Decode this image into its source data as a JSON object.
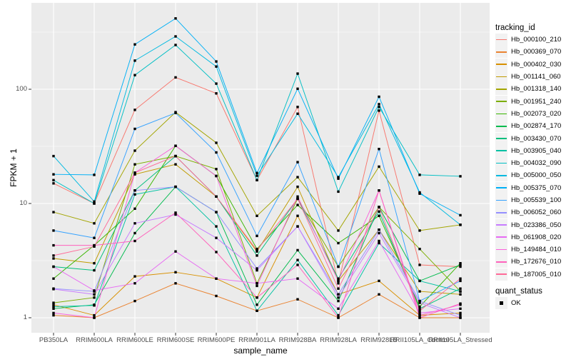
{
  "chart_data": {
    "type": "line",
    "title": "",
    "xlabel": "sample_name",
    "ylabel": "FPKM + 1",
    "yscale": "log10",
    "ylim": [
      0.75,
      530
    ],
    "yticks": [
      1,
      10,
      100
    ],
    "ytick_labels": [
      "1",
      "10",
      "100"
    ],
    "grid": "on",
    "marker": "black-square",
    "legend": {
      "title": "tracking_id",
      "position": "right"
    },
    "quant_status": {
      "title": "quant_status",
      "items": [
        {
          "label": "OK",
          "marker": "black-square"
        }
      ]
    },
    "categories": [
      "PB350LA",
      "RRIM600LA",
      "RRIM600LE",
      "RRIM600SE",
      "RRIM600PE",
      "RRIM901LA",
      "RRIM928BA",
      "RRIM928LA",
      "RRIM928LB",
      "RRII105LA_Control",
      "RRII105LA_Stressed"
    ],
    "series": [
      {
        "name": "Hb_000100_210",
        "color": "#F8766D",
        "values": [
          15,
          10,
          66,
          127,
          92,
          16,
          70,
          2.0,
          65,
          2.9,
          2.8
        ]
      },
      {
        "name": "Hb_000369_070",
        "color": "#EA8331",
        "values": [
          1.05,
          1.0,
          1.4,
          2.0,
          1.55,
          1.15,
          1.45,
          1.0,
          1.6,
          1.0,
          1.0
        ]
      },
      {
        "name": "Hb_000402_030",
        "color": "#D89000",
        "values": [
          1.3,
          1.05,
          2.3,
          2.5,
          2.2,
          1.5,
          7.8,
          1.6,
          2.1,
          1.05,
          1.1
        ]
      },
      {
        "name": "Hb_001141_060",
        "color": "#C09B00",
        "values": [
          3.3,
          3.0,
          18,
          22,
          11.5,
          3.8,
          14,
          2.1,
          5.9,
          1.7,
          1.6
        ]
      },
      {
        "name": "Hb_001318_140",
        "color": "#A3A500",
        "values": [
          8.4,
          6.7,
          29,
          63,
          34,
          7.8,
          17,
          5.8,
          21,
          5.8,
          6.5
        ]
      },
      {
        "name": "Hb_001951_240",
        "color": "#7CAE00",
        "values": [
          1.35,
          1.5,
          22,
          26,
          20,
          2.0,
          11,
          2.8,
          9.3,
          4.0,
          1.7
        ]
      },
      {
        "name": "Hb_002073_020",
        "color": "#39B600",
        "values": [
          2.2,
          4.3,
          9.0,
          32,
          17.4,
          4.0,
          9.7,
          4.5,
          7.8,
          1.25,
          3.0
        ]
      },
      {
        "name": "Hb_002874_170",
        "color": "#00BB4E",
        "values": [
          1.2,
          1.3,
          5.5,
          14,
          8.4,
          1.3,
          3.9,
          1.4,
          9.3,
          2.1,
          2.9
        ]
      },
      {
        "name": "Hb_003430_070",
        "color": "#00BF7D",
        "values": [
          2.8,
          2.6,
          13,
          26,
          11.5,
          3.5,
          11,
          2.2,
          8.5,
          1.2,
          1.8
        ]
      },
      {
        "name": "Hb_003905_040",
        "color": "#00C1A3",
        "values": [
          1.25,
          1.28,
          12,
          14,
          6.3,
          1.15,
          3.2,
          1.05,
          4.5,
          2.1,
          1.7
        ]
      },
      {
        "name": "Hb_004032_090",
        "color": "#00BFC4",
        "values": [
          16,
          10,
          133,
          244,
          112,
          16,
          137,
          12.7,
          70,
          17.8,
          17.3
        ]
      },
      {
        "name": "Hb_005000_050",
        "color": "#00BAE0",
        "values": [
          26,
          10.4,
          178,
          290,
          158,
          17.5,
          61,
          17,
          74,
          12.5,
          6.5
        ]
      },
      {
        "name": "Hb_005375_070",
        "color": "#00B0F6",
        "values": [
          18,
          17.8,
          247,
          417,
          175,
          18.5,
          101,
          16.5,
          86,
          12.2,
          7.9
        ]
      },
      {
        "name": "Hb_005539_100",
        "color": "#35A2FF",
        "values": [
          5.8,
          5.0,
          45,
          62,
          28,
          5.2,
          23,
          2.8,
          30,
          1.4,
          2.1
        ]
      },
      {
        "name": "Hb_006052_060",
        "color": "#9590FF",
        "values": [
          1.8,
          1.7,
          13,
          14,
          8.4,
          2.7,
          6.3,
          1.6,
          5.9,
          1.4,
          1.05
        ]
      },
      {
        "name": "Hb_023386_050",
        "color": "#C77CFF",
        "values": [
          1.78,
          1.6,
          6.7,
          8.0,
          5.0,
          2.6,
          6.3,
          1.5,
          5.5,
          1.35,
          1.0
        ]
      },
      {
        "name": "Hb_061908_020",
        "color": "#E76BF3",
        "values": [
          2.8,
          1.73,
          2.0,
          3.8,
          2.2,
          2.0,
          2.2,
          1.2,
          4.7,
          1.1,
          1.2
        ]
      },
      {
        "name": "Hb_149484_010",
        "color": "#FA62DB",
        "values": [
          1.1,
          1.0,
          18.6,
          32,
          17.4,
          1.9,
          11.5,
          2.1,
          13,
          1.05,
          1.3
        ]
      },
      {
        "name": "Hb_172676_010",
        "color": "#FF62BC",
        "values": [
          4.3,
          4.3,
          4.7,
          8.3,
          3.76,
          1.5,
          2.9,
          1.0,
          13,
          1.0,
          1.33
        ]
      },
      {
        "name": "Hb_187005_010",
        "color": "#FF6A98",
        "values": [
          3.5,
          4.2,
          18.6,
          26,
          11.5,
          3.9,
          11,
          1.8,
          9.3,
          1.15,
          2.2
        ]
      }
    ]
  },
  "colors": {
    "panel_background": "#EBEBEB",
    "grid_line": "#FFFFFF",
    "axis_text": "#4D4D4D",
    "axis_title": "#000000",
    "point": "#000000",
    "legend_key_background": "#F2F2F2"
  }
}
